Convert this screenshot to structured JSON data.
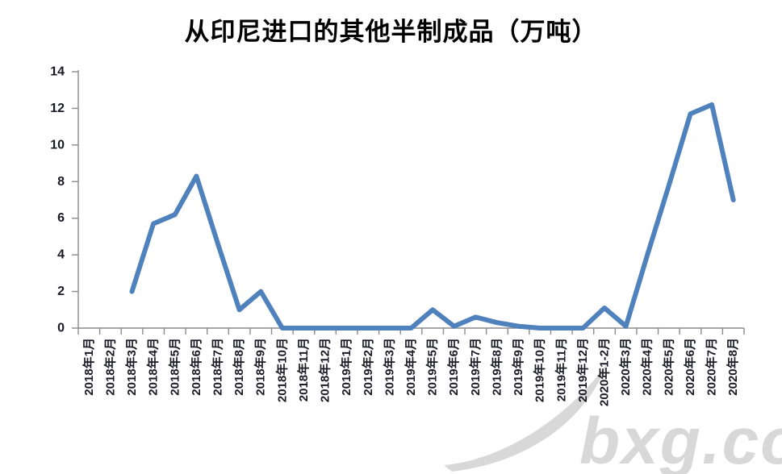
{
  "colors": {
    "line": "#4F81BD",
    "axis": "#8C8C8C",
    "text": "#1A1A24",
    "watermark": "#D8D8D8"
  },
  "watermark": {
    "text": "bxg.com"
  },
  "chart_data": {
    "type": "line",
    "title": "从印尼进口的其他半制成品（万吨）",
    "xlabel": "",
    "ylabel": "",
    "ylim": [
      0,
      14
    ],
    "y_ticks": [
      0,
      2,
      4,
      6,
      8,
      10,
      12,
      14
    ],
    "grid": false,
    "legend": "none",
    "line_color": "#4F81BD",
    "categories": [
      "2018年1月",
      "2018年2月",
      "2018年3月",
      "2018年4月",
      "2018年5月",
      "2018年6月",
      "2018年7月",
      "2018年8月",
      "2018年9月",
      "2018年10月",
      "2018年11月",
      "2018年12月",
      "2019年1月",
      "2019年2月",
      "2019年3月",
      "2019年4月",
      "2019年5月",
      "2019年6月",
      "2019年7月",
      "2019年8月",
      "2019年9月",
      "2019年10月",
      "2019年11月",
      "2019年12月",
      "2020年1-2月",
      "2020年3月",
      "2020年4月",
      "2020年5月",
      "2020年6月",
      "2020年7月",
      "2020年8月"
    ],
    "values": [
      null,
      null,
      2.0,
      5.7,
      6.2,
      8.3,
      4.6,
      1.0,
      2.0,
      0,
      0,
      0,
      0,
      0,
      0,
      0,
      1.0,
      0.1,
      0.6,
      0.3,
      0.1,
      0,
      0,
      0,
      1.1,
      0.1,
      4.0,
      7.8,
      11.7,
      12.2,
      7.0
    ]
  }
}
